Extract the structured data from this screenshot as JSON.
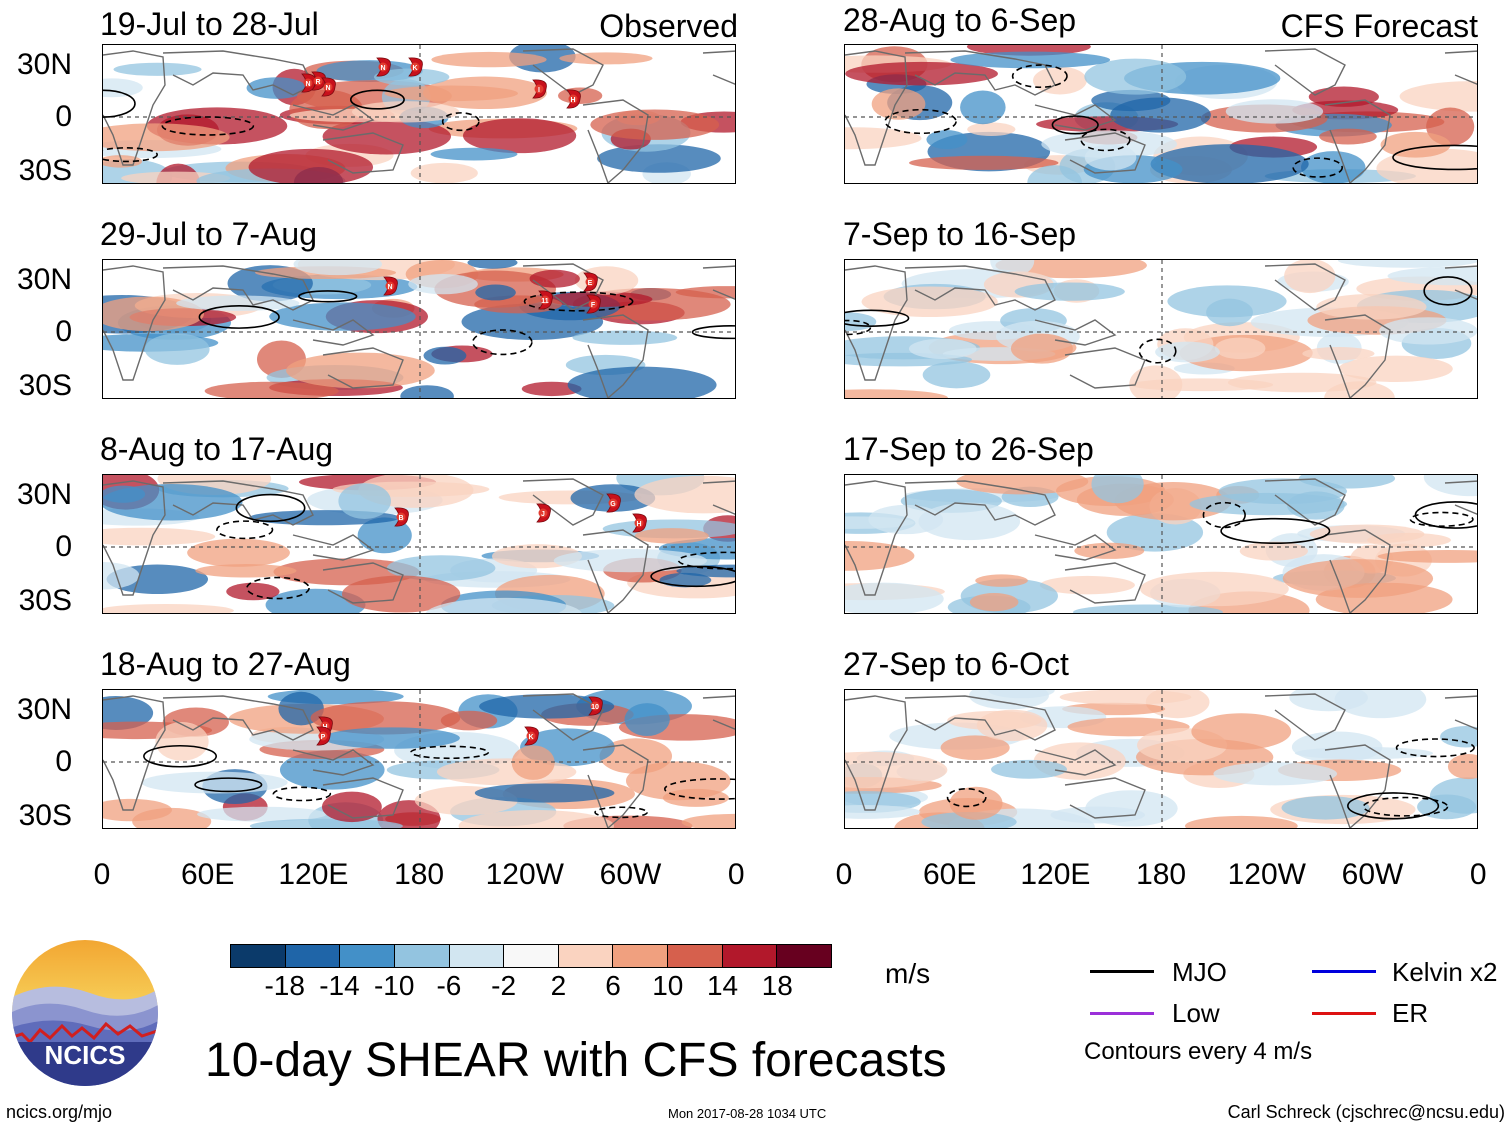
{
  "header": {
    "left_label": "Observed",
    "right_label": "CFS Forecast"
  },
  "panels_left": [
    {
      "date": "19-Jul to 28-Jul",
      "storms": [
        "N",
        "R",
        "N",
        "N",
        "K",
        "I",
        "H"
      ]
    },
    {
      "date": "29-Jul to 7-Aug",
      "storms": [
        "N",
        "E",
        "11",
        "F"
      ]
    },
    {
      "date": "8-Aug to 17-Aug",
      "storms": [
        "B",
        "J",
        "G",
        "H"
      ]
    },
    {
      "date": "18-Aug to 27-Aug",
      "storms": [
        "H",
        "P",
        "K",
        "10"
      ]
    }
  ],
  "panels_right": [
    {
      "date": "28-Aug to 6-Sep"
    },
    {
      "date": "7-Sep to 16-Sep"
    },
    {
      "date": "17-Sep to 26-Sep"
    },
    {
      "date": "27-Sep to 6-Oct"
    }
  ],
  "lat_labels": [
    "30N",
    "0",
    "30S"
  ],
  "lon_labels": [
    "0",
    "60E",
    "120E",
    "180",
    "120W",
    "60W",
    "0"
  ],
  "colorbar": {
    "ticks": [
      "-18",
      "-14",
      "-10",
      "-6",
      "-2",
      "2",
      "6",
      "10",
      "14",
      "18"
    ],
    "colors": [
      "#0b3a6a",
      "#1f65a8",
      "#4390c8",
      "#93c4e0",
      "#d2e6f1",
      "#f8f8f8",
      "#fad3c0",
      "#f0a07f",
      "#d6604d",
      "#b2182b",
      "#67001f"
    ],
    "units": "m/s"
  },
  "legend": {
    "mjo": "MJO",
    "kelvin": "Kelvin x2",
    "low": "Low",
    "er": "ER",
    "contours": "Contours every 4 m/s",
    "colors": {
      "mjo": "#000000",
      "kelvin": "#0000dd",
      "low": "#9b30d9",
      "er": "#dd1111"
    }
  },
  "title": "10-day SHEAR with CFS forecasts",
  "logo_text": "NCICS",
  "footer": {
    "url": "ncics.org/mjo",
    "timestamp": "Mon 2017-08-28 1034 UTC",
    "author": "Carl Schreck (cjschrec@ncsu.edu)"
  }
}
